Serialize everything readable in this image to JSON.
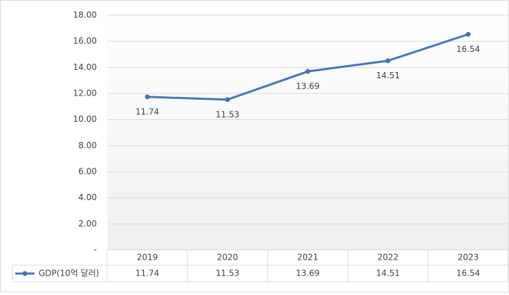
{
  "chart_data": {
    "type": "line",
    "categories": [
      "2019",
      "2020",
      "2021",
      "2022",
      "2023"
    ],
    "series": [
      {
        "name": "GDP(10억 달러)",
        "color": "#4472c4",
        "values": [
          11.74,
          11.53,
          13.69,
          14.51,
          16.54
        ]
      }
    ],
    "ylim": [
      0,
      18
    ],
    "yticks": [
      {
        "value": 0,
        "label": "-"
      },
      {
        "value": 2,
        "label": "2.00"
      },
      {
        "value": 4,
        "label": "4.00"
      },
      {
        "value": 6,
        "label": "6.00"
      },
      {
        "value": 8,
        "label": "8.00"
      },
      {
        "value": 10,
        "label": "10.00"
      },
      {
        "value": 12,
        "label": "12.00"
      },
      {
        "value": 14,
        "label": "14.00"
      },
      {
        "value": 16,
        "label": "16.00"
      },
      {
        "value": 18,
        "label": "18.00"
      }
    ],
    "grid": true
  }
}
